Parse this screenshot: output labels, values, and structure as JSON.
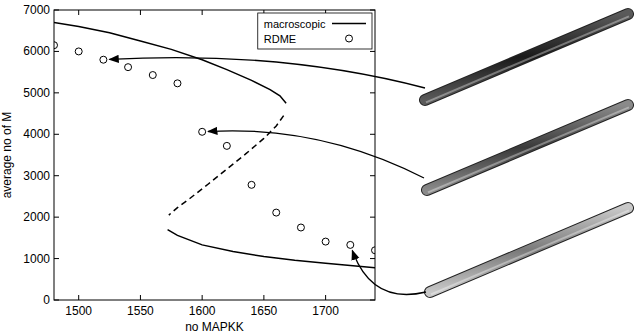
{
  "chart_data": {
    "type": "line",
    "x_label": "no MAPKK",
    "y_label": "average no of M",
    "xlim": [
      1480,
      1740
    ],
    "ylim": [
      0,
      7000
    ],
    "xticks": [
      1500,
      1550,
      1600,
      1650,
      1700
    ],
    "yticks": [
      0,
      1000,
      2000,
      3000,
      4000,
      5000,
      6000,
      7000
    ],
    "grid": false,
    "legend": "upper right",
    "series": [
      {
        "name": "macroscopic",
        "type": "line",
        "line_style": "solid",
        "color": "#000000",
        "x": [
          1480,
          1500,
          1525,
          1550,
          1575,
          1600,
          1620,
          1640,
          1655,
          1663,
          1668,
          null,
          1572,
          1580,
          1600,
          1625,
          1650,
          1675,
          1700,
          1720,
          1740
        ],
        "values": [
          6700,
          6600,
          6450,
          6250,
          6050,
          5800,
          5560,
          5300,
          5080,
          4930,
          4750,
          null,
          1700,
          1560,
          1330,
          1170,
          1050,
          960,
          890,
          830,
          780
        ]
      },
      {
        "name": "macroscopic",
        "type": "line",
        "line_style": "dashed",
        "color": "#000000",
        "x": [
          1666,
          1660,
          1650,
          1635,
          1620,
          1605,
          1590,
          1580,
          1573
        ],
        "values": [
          4450,
          4200,
          3900,
          3520,
          3160,
          2800,
          2450,
          2230,
          2050
        ]
      },
      {
        "name": "RDME",
        "type": "scatter",
        "marker": "circle",
        "color": "#000000",
        "x": [
          1480,
          1500,
          1520,
          1540,
          1560,
          1580,
          1600,
          1620,
          1640,
          1660,
          1680,
          1700,
          1720,
          1740
        ],
        "values": [
          6150,
          6000,
          5800,
          5620,
          5430,
          5230,
          4060,
          3720,
          2780,
          2110,
          1750,
          1410,
          1330,
          1200
        ]
      }
    ]
  }
}
